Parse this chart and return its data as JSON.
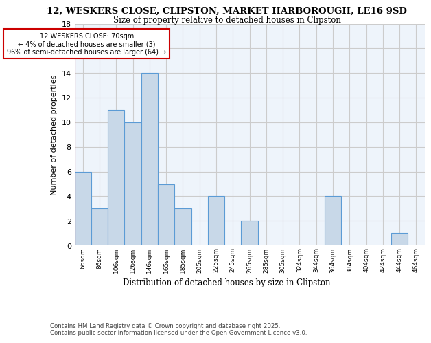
{
  "title_line1": "12, WESKERS CLOSE, CLIPSTON, MARKET HARBOROUGH, LE16 9SD",
  "title_line2": "Size of property relative to detached houses in Clipston",
  "xlabel": "Distribution of detached houses by size in Clipston",
  "ylabel": "Number of detached properties",
  "footer_line1": "Contains HM Land Registry data © Crown copyright and database right 2025.",
  "footer_line2": "Contains public sector information licensed under the Open Government Licence v3.0.",
  "annotation_line1": "12 WESKERS CLOSE: 70sqm",
  "annotation_line2": "← 4% of detached houses are smaller (3)",
  "annotation_line3": "96% of semi-detached houses are larger (64) →",
  "categories": [
    "66sqm",
    "86sqm",
    "106sqm",
    "126sqm",
    "146sqm",
    "165sqm",
    "185sqm",
    "205sqm",
    "225sqm",
    "245sqm",
    "265sqm",
    "285sqm",
    "305sqm",
    "324sqm",
    "344sqm",
    "364sqm",
    "384sqm",
    "404sqm",
    "424sqm",
    "444sqm",
    "464sqm"
  ],
  "values": [
    6,
    3,
    11,
    10,
    14,
    5,
    3,
    0,
    4,
    0,
    2,
    0,
    0,
    0,
    0,
    4,
    0,
    0,
    0,
    1,
    0
  ],
  "bar_color": "#c8d8e8",
  "bar_edge_color": "#5b9bd5",
  "grid_color": "#cccccc",
  "background_color": "#eef4fb",
  "vline_color": "#cc0000",
  "annotation_box_color": "#cc0000",
  "ylim": [
    0,
    18
  ],
  "yticks": [
    0,
    2,
    4,
    6,
    8,
    10,
    12,
    14,
    16,
    18
  ]
}
